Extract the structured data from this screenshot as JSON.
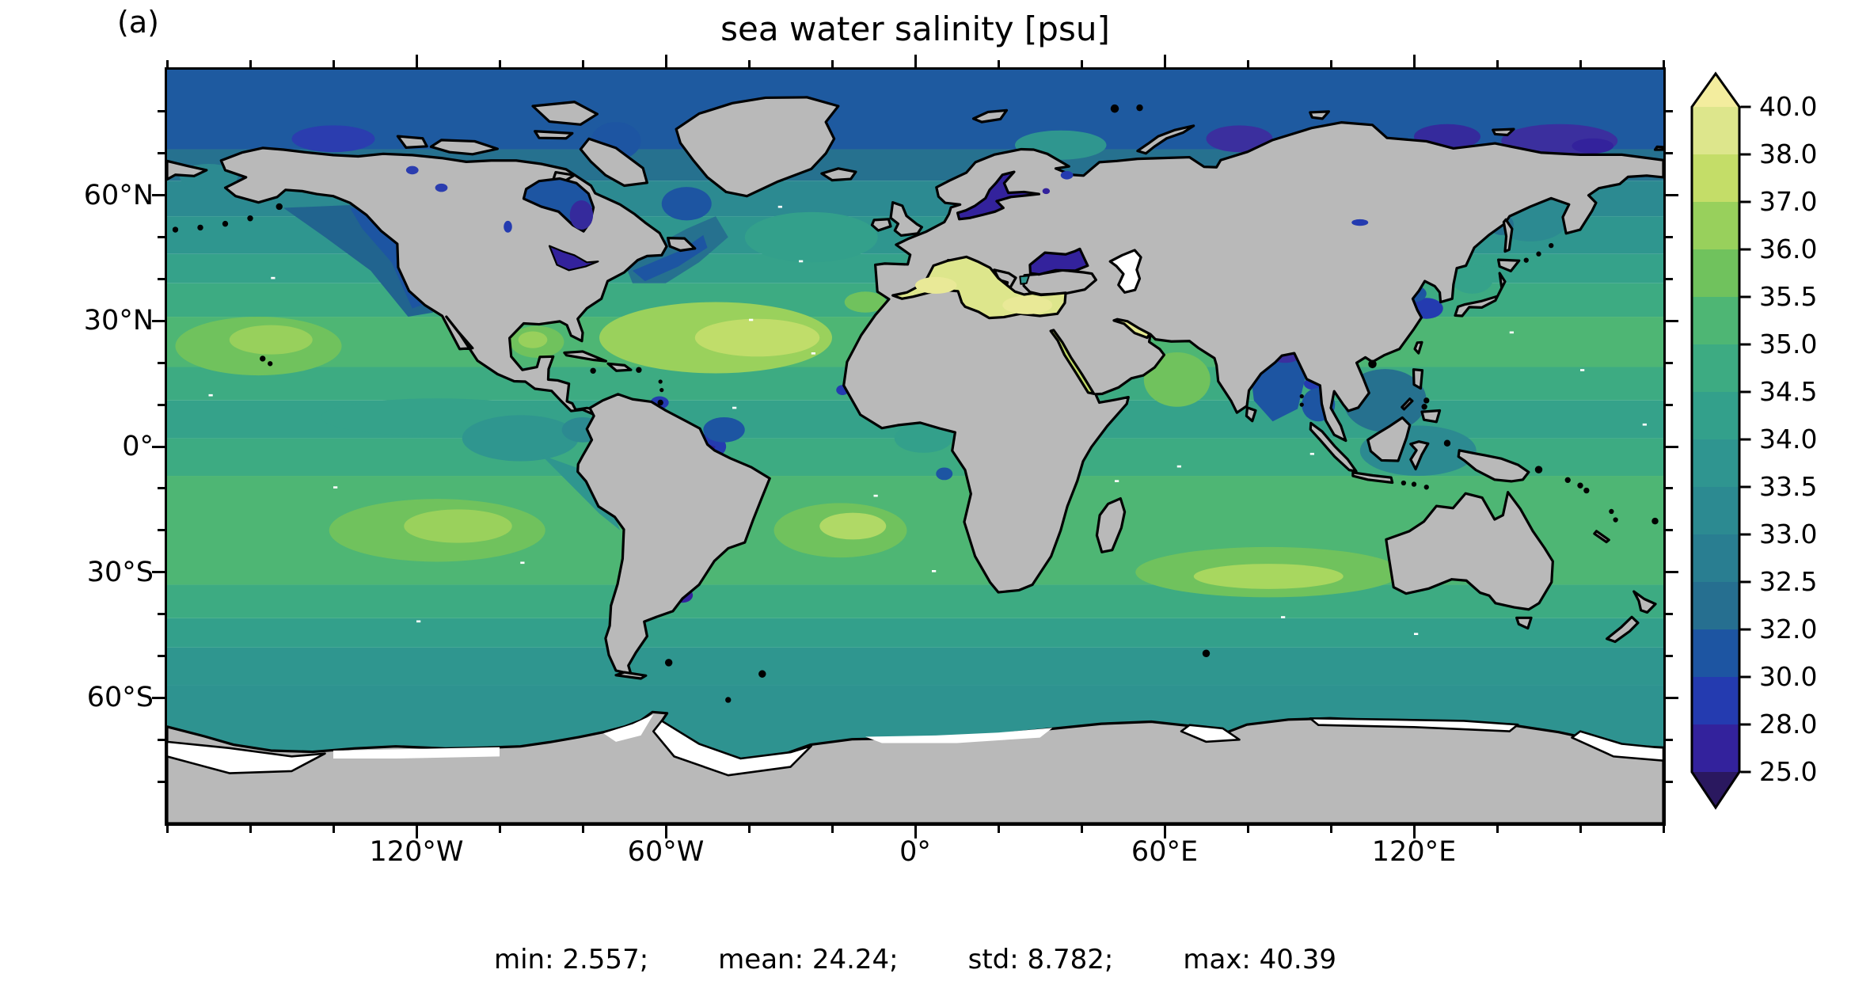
{
  "figure": {
    "panel_label": "(a)",
    "title": "sea water salinity [psu]"
  },
  "axes": {
    "x": {
      "tick_labels": [
        "120°W",
        "60°W",
        "0°",
        "60°E",
        "120°E"
      ],
      "tick_lons": [
        -120,
        -60,
        0,
        60,
        120
      ],
      "minor_step_deg": 20,
      "range": [
        -180,
        180
      ]
    },
    "y": {
      "tick_labels": [
        "60°N",
        "30°N",
        "0°",
        "30°S",
        "60°S"
      ],
      "tick_lats": [
        60,
        30,
        0,
        -30,
        -60
      ],
      "minor_step_deg": 10,
      "range": [
        -90,
        90
      ]
    }
  },
  "colorbar": {
    "tick_labels": [
      "40.0",
      "38.0",
      "37.0",
      "36.0",
      "35.5",
      "35.0",
      "34.5",
      "34.0",
      "33.5",
      "33.0",
      "32.5",
      "32.0",
      "30.0",
      "28.0",
      "25.0"
    ],
    "band_colors_top_to_bottom": [
      "#dde68c",
      "#c4dd68",
      "#98d05c",
      "#70c25d",
      "#4eb674",
      "#3dab82",
      "#33a08b",
      "#2f9590",
      "#2c8a91",
      "#297e91",
      "#266f90",
      "#1d55a2",
      "#243bb0",
      "#33229c"
    ],
    "over_color": "#f3ed9e",
    "under_color": "#2a185f",
    "outline_color": "#000000"
  },
  "stats": {
    "items": [
      "min: 2.557;",
      "mean: 24.24;",
      "std: 8.782;",
      "max: 40.39"
    ]
  },
  "map": {
    "land_color": "#b9b9b9",
    "coast_color": "#000000",
    "no_data_color": "#ffffff"
  },
  "chart_data": {
    "type": "heatmap",
    "title": "sea water salinity [psu]",
    "variable": "sea water salinity",
    "units": "psu",
    "projection": "equirectangular global map",
    "lon_range": [
      -180,
      180
    ],
    "lat_range": [
      -90,
      90
    ],
    "x_tick_labels": [
      "120°W",
      "60°W",
      "0°",
      "60°E",
      "120°E"
    ],
    "y_tick_labels": [
      "60°N",
      "30°N",
      "0°",
      "30°S",
      "60°S"
    ],
    "contour_levels": [
      25,
      28,
      30,
      32,
      32.5,
      33,
      33.5,
      34,
      34.5,
      35,
      35.5,
      36,
      37,
      38,
      40
    ],
    "level_colors_low_to_high": [
      "#33229c",
      "#243bb0",
      "#1d55a2",
      "#266f90",
      "#297e91",
      "#2c8a91",
      "#2f9590",
      "#33a08b",
      "#3dab82",
      "#4eb674",
      "#70c25d",
      "#98d05c",
      "#c4dd68",
      "#dde68c"
    ],
    "colorbar_extend": "both",
    "under_color": "#2a185f",
    "over_color": "#f3ed9e",
    "stats": {
      "min": 2.557,
      "mean": 24.24,
      "std": 8.782,
      "max": 40.39
    },
    "notable_features": [
      "Mediterranean Sea, Red Sea and Persian Gulf highest (~38-40 psu)",
      "Subtropical gyre maxima ~36-37.5 psu in Atlantic, Pacific and Indian oceans",
      "Open-ocean mid latitudes ~34-35.5 psu; Southern Ocean ~33.5-34 psu",
      "Arctic shelves, Hudson Bay and Bay of Bengal fresh (~28-32 psu)",
      "Baltic Sea and Black Sea freshest (<28 psu); river plumes (Amazon, Ganges) locally fresh",
      "Caspian Sea and ice-shelf fringes shown as no-data (white); land masked grey"
    ]
  }
}
